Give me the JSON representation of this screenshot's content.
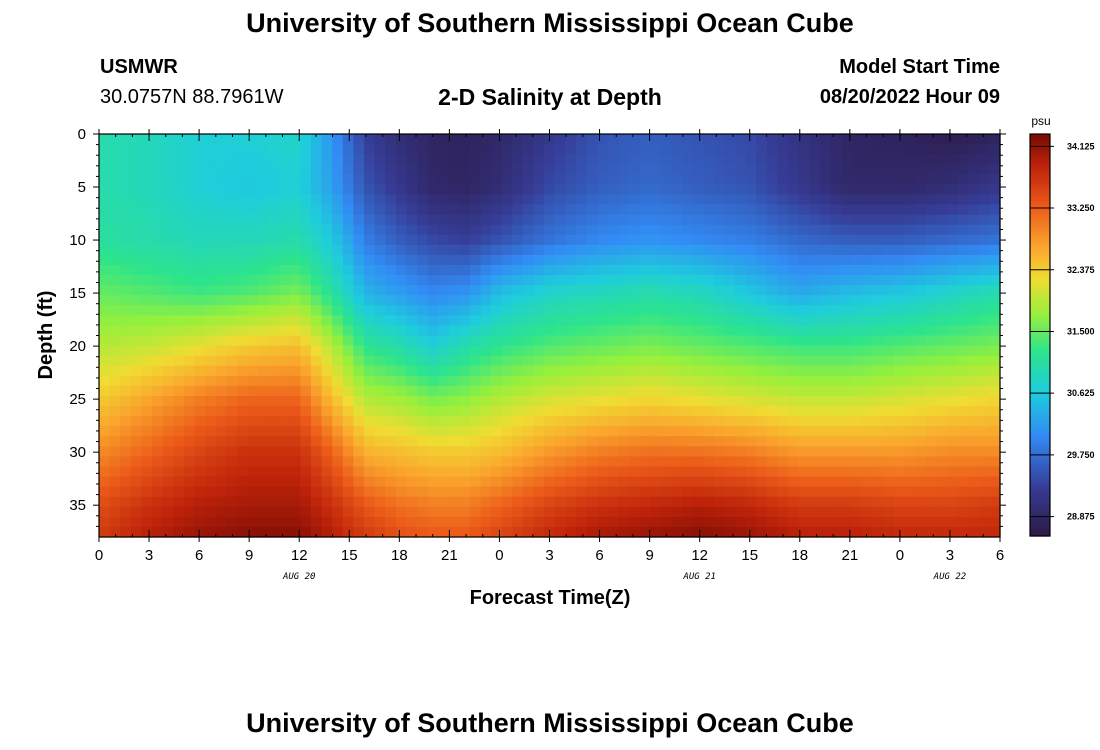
{
  "header": {
    "main_title": "University of Southern Mississippi Ocean Cube",
    "station_id": "USMWR",
    "station_coords": "30.0757N  88.7961W",
    "plot_title": "2-D Salinity at Depth",
    "model_start_label": "Model Start Time",
    "model_start_value": "08/20/2022 Hour 09",
    "footer_title": "University of Southern Mississippi Ocean Cube"
  },
  "chart_data": {
    "type": "heatmap",
    "title": "2-D Salinity at Depth",
    "xlabel": "Forecast Time(Z)",
    "ylabel": "Depth (ft)",
    "x_tick_labels": [
      "0",
      "3",
      "6",
      "9",
      "12",
      "15",
      "18",
      "21",
      "0",
      "3",
      "6",
      "9",
      "12",
      "15",
      "18",
      "21",
      "0",
      "3",
      "6"
    ],
    "x_date_labels": [
      {
        "label": "AUG 20",
        "hour_offset": 12
      },
      {
        "label": "AUG 21",
        "hour_offset": 36
      },
      {
        "label": "AUG 22",
        "hour_offset": 51
      }
    ],
    "x_range_hours": [
      0,
      54
    ],
    "y_ticks": [
      0,
      5,
      10,
      15,
      20,
      25,
      30,
      35
    ],
    "y_range": [
      0,
      38
    ],
    "y_inverted": true,
    "colorbar": {
      "unit": "psu",
      "range": [
        28.6,
        34.3
      ],
      "tick_values": [
        28.875,
        29.75,
        30.625,
        31.5,
        32.375,
        33.25,
        34.125
      ],
      "tick_labels": [
        "28.875",
        "29.750",
        "30.625",
        "31.500",
        "32.375",
        "33.250",
        "34.125"
      ]
    },
    "depth_profile_ft": [
      0,
      5,
      10,
      15,
      20,
      25,
      30,
      35,
      38
    ],
    "profiles": [
      {
        "hour": 0,
        "salinity": [
          31.0,
          31.0,
          31.1,
          31.5,
          31.9,
          32.4,
          32.9,
          33.4,
          33.6
        ]
      },
      {
        "hour": 3,
        "salinity": [
          30.9,
          30.9,
          31.0,
          31.4,
          32.0,
          32.7,
          33.2,
          33.7,
          33.9
        ]
      },
      {
        "hour": 6,
        "salinity": [
          30.7,
          30.7,
          30.9,
          31.3,
          32.2,
          33.0,
          33.5,
          33.9,
          34.1
        ]
      },
      {
        "hour": 9,
        "salinity": [
          30.7,
          30.6,
          30.9,
          31.4,
          32.4,
          33.2,
          33.7,
          34.0,
          34.2
        ]
      },
      {
        "hour": 12,
        "salinity": [
          30.8,
          30.7,
          31.0,
          31.6,
          32.5,
          33.2,
          33.7,
          34.0,
          34.2
        ]
      },
      {
        "hour": 14,
        "salinity": [
          30.1,
          30.2,
          30.6,
          31.1,
          31.9,
          32.5,
          33.2,
          33.7,
          33.9
        ]
      },
      {
        "hour": 16,
        "salinity": [
          29.3,
          29.5,
          29.9,
          30.4,
          31.2,
          31.9,
          32.6,
          33.3,
          33.6
        ]
      },
      {
        "hour": 18,
        "salinity": [
          29.0,
          29.2,
          29.6,
          30.2,
          31.0,
          31.8,
          32.5,
          33.1,
          33.4
        ]
      },
      {
        "hour": 20,
        "salinity": [
          28.85,
          28.9,
          29.4,
          30.0,
          30.7,
          31.6,
          32.4,
          33.0,
          33.3
        ]
      },
      {
        "hour": 22,
        "salinity": [
          28.8,
          28.85,
          29.3,
          30.1,
          31.0,
          31.7,
          32.4,
          33.0,
          33.3
        ]
      },
      {
        "hour": 24,
        "salinity": [
          28.9,
          29.0,
          29.5,
          30.5,
          31.2,
          31.9,
          32.5,
          33.2,
          33.5
        ]
      },
      {
        "hour": 27,
        "salinity": [
          29.2,
          29.4,
          29.8,
          30.8,
          31.4,
          32.1,
          32.8,
          33.5,
          33.8
        ]
      },
      {
        "hour": 30,
        "salinity": [
          29.5,
          29.6,
          30.0,
          30.9,
          31.5,
          32.2,
          33.0,
          33.7,
          34.0
        ]
      },
      {
        "hour": 33,
        "salinity": [
          29.6,
          29.7,
          30.1,
          31.0,
          31.6,
          32.3,
          33.1,
          33.8,
          34.1
        ]
      },
      {
        "hour": 36,
        "salinity": [
          29.5,
          29.6,
          30.0,
          30.9,
          31.5,
          32.2,
          33.1,
          33.9,
          34.2
        ]
      },
      {
        "hour": 39,
        "salinity": [
          29.4,
          29.5,
          29.9,
          30.6,
          31.4,
          32.1,
          33.0,
          33.8,
          34.1
        ]
      },
      {
        "hour": 42,
        "salinity": [
          29.1,
          29.2,
          29.7,
          30.3,
          31.3,
          32.0,
          32.8,
          33.6,
          33.9
        ]
      },
      {
        "hour": 45,
        "salinity": [
          28.85,
          28.9,
          29.6,
          30.5,
          31.3,
          32.0,
          32.8,
          33.6,
          33.9
        ]
      },
      {
        "hour": 48,
        "salinity": [
          28.8,
          28.9,
          29.6,
          30.6,
          31.4,
          32.1,
          32.8,
          33.5,
          33.8
        ]
      },
      {
        "hour": 51,
        "salinity": [
          28.7,
          29.0,
          29.7,
          30.8,
          31.5,
          32.2,
          32.9,
          33.5,
          33.8
        ]
      },
      {
        "hour": 54,
        "salinity": [
          28.8,
          29.2,
          29.8,
          31.0,
          31.6,
          32.3,
          32.9,
          33.6,
          33.8
        ]
      }
    ]
  }
}
